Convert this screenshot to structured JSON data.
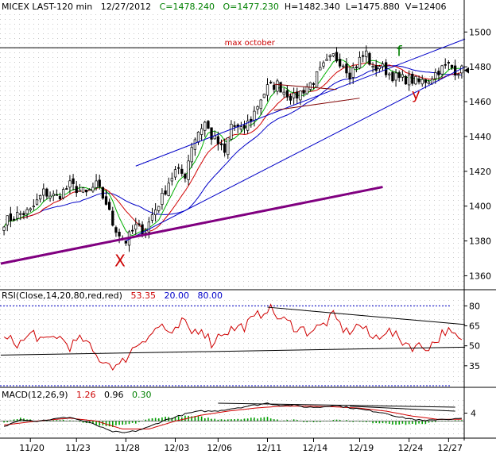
{
  "header": {
    "symbol": "MICEX LAST-120 min",
    "date": "12/27/2012",
    "close": "C=1478.240",
    "open": "O=1477.230",
    "high": "H=1482.340",
    "low": "L=1475.880",
    "volume": "V=12406"
  },
  "annotations": {
    "max_october": "max october",
    "x_label": "X",
    "f_label": "f",
    "y_label": "y"
  },
  "rsi_header": {
    "name": "RSI(Close,14,20,80,red,red)",
    "value": "53.35",
    "low_level": "20.00",
    "high_level": "80.00"
  },
  "macd_header": {
    "name": "MACD(12,26,9)",
    "macd": "1.26",
    "signal": "0.96",
    "hist": "0.30"
  },
  "colors": {
    "bull_candle": "#000000",
    "bear_candle": "#000000",
    "ma_fast": "#00b000",
    "ma_mid": "#d00000",
    "ma_slow": "#0000c8",
    "channel": "#0000c8",
    "support": "#800080",
    "rsi_line": "#d00000",
    "macd_line": "#000000",
    "signal_line": "#d00000",
    "hist": "#00a000",
    "guide": "#0000c8",
    "annot_red": "#cc0000",
    "annot_green": "#008000"
  },
  "chart_data": [
    {
      "type": "candlestick",
      "title": "MICEX LAST-120 min",
      "ylim": [
        1352,
        1512
      ],
      "y_ticks": [
        1360,
        1380,
        1400,
        1420,
        1440,
        1460,
        1480,
        1500
      ],
      "x_ticks": [
        "11/20",
        "11/23",
        "11/28",
        "12/03",
        "12/06",
        "12/11",
        "12/14",
        "12/19",
        "12/24",
        "12/27"
      ],
      "x_tick_index": [
        8,
        22,
        37,
        52,
        65,
        80,
        94,
        108,
        123,
        135
      ],
      "bar_count": 140,
      "close_anchors": [
        [
          0,
          1391
        ],
        [
          4,
          1395
        ],
        [
          8,
          1397
        ],
        [
          12,
          1408
        ],
        [
          16,
          1405
        ],
        [
          20,
          1412
        ],
        [
          22,
          1410
        ],
        [
          25,
          1407
        ],
        [
          28,
          1412
        ],
        [
          31,
          1402
        ],
        [
          33,
          1390
        ],
        [
          35,
          1384
        ],
        [
          37,
          1380
        ],
        [
          40,
          1388
        ],
        [
          43,
          1386
        ],
        [
          45,
          1395
        ],
        [
          48,
          1405
        ],
        [
          50,
          1414
        ],
        [
          52,
          1420
        ],
        [
          55,
          1418
        ],
        [
          57,
          1435
        ],
        [
          59,
          1443
        ],
        [
          61,
          1448
        ],
        [
          63,
          1440
        ],
        [
          65,
          1436
        ],
        [
          67,
          1430
        ],
        [
          69,
          1447
        ],
        [
          72,
          1443
        ],
        [
          75,
          1450
        ],
        [
          78,
          1462
        ],
        [
          80,
          1468
        ],
        [
          83,
          1470
        ],
        [
          85,
          1466
        ],
        [
          88,
          1462
        ],
        [
          91,
          1467
        ],
        [
          94,
          1472
        ],
        [
          97,
          1480
        ],
        [
          100,
          1486
        ],
        [
          103,
          1482
        ],
        [
          105,
          1476
        ],
        [
          108,
          1484
        ],
        [
          110,
          1488
        ],
        [
          112,
          1478
        ],
        [
          114,
          1481
        ],
        [
          117,
          1476
        ],
        [
          120,
          1473
        ],
        [
          123,
          1473
        ],
        [
          126,
          1471
        ],
        [
          129,
          1473
        ],
        [
          132,
          1478
        ],
        [
          135,
          1481
        ],
        [
          137,
          1478
        ],
        [
          139,
          1478
        ]
      ],
      "lines": {
        "max_october": {
          "value": 1491
        },
        "channel_upper": {
          "from": [
            40,
            1423
          ],
          "to": [
            140,
            1496
          ]
        },
        "channel_lower": {
          "from": [
            37,
            1380
          ],
          "to": [
            140,
            1480
          ]
        },
        "support": {
          "from": [
            -1,
            1367
          ],
          "to": [
            115,
            1411
          ]
        },
        "triangle_top": {
          "from": [
            82,
            1470
          ],
          "to": [
            101,
            1467
          ]
        },
        "triangle_bottom": {
          "from": [
            82,
            1455
          ],
          "to": [
            108,
            1462
          ]
        }
      },
      "labels": {
        "x": [
          35,
          1369
        ],
        "f": [
          120,
          1489
        ],
        "y": [
          125,
          1465
        ]
      }
    },
    {
      "type": "line",
      "title": "RSI(Close,14,20,80,red,red)",
      "ylim": [
        20,
        85
      ],
      "y_ticks": [
        35,
        50,
        65,
        80
      ],
      "levels": [
        80,
        20
      ],
      "rsi_anchors": [
        [
          0,
          55
        ],
        [
          5,
          52
        ],
        [
          9,
          60
        ],
        [
          12,
          52
        ],
        [
          16,
          58
        ],
        [
          20,
          50
        ],
        [
          24,
          55
        ],
        [
          28,
          42
        ],
        [
          31,
          38
        ],
        [
          35,
          34
        ],
        [
          38,
          45
        ],
        [
          42,
          55
        ],
        [
          45,
          60
        ],
        [
          48,
          66
        ],
        [
          51,
          56
        ],
        [
          54,
          68
        ],
        [
          57,
          60
        ],
        [
          60,
          64
        ],
        [
          63,
          52
        ],
        [
          66,
          60
        ],
        [
          70,
          63
        ],
        [
          73,
          65
        ],
        [
          76,
          70
        ],
        [
          80,
          79
        ],
        [
          84,
          70
        ],
        [
          88,
          65
        ],
        [
          92,
          61
        ],
        [
          96,
          64
        ],
        [
          100,
          72
        ],
        [
          104,
          60
        ],
        [
          108,
          66
        ],
        [
          112,
          55
        ],
        [
          116,
          62
        ],
        [
          120,
          55
        ],
        [
          124,
          50
        ],
        [
          128,
          49
        ],
        [
          131,
          53
        ],
        [
          134,
          62
        ],
        [
          137,
          56
        ],
        [
          139,
          53
        ]
      ],
      "trend_upper": {
        "from": [
          80,
          79
        ],
        "to": [
          140,
          66
        ]
      },
      "trend_lower": {
        "from": [
          -1,
          43
        ],
        "to": [
          140,
          49
        ]
      }
    },
    {
      "type": "line",
      "title": "MACD(12,26,9)",
      "ylim": [
        -7,
        11
      ],
      "y_ticks": [
        4
      ],
      "macd_anchors": [
        [
          0,
          -3
        ],
        [
          5,
          1
        ],
        [
          10,
          0
        ],
        [
          15,
          1
        ],
        [
          20,
          2
        ],
        [
          24,
          0
        ],
        [
          28,
          -2
        ],
        [
          32,
          -5
        ],
        [
          36,
          -6
        ],
        [
          40,
          -5
        ],
        [
          44,
          -3
        ],
        [
          48,
          0
        ],
        [
          52,
          2
        ],
        [
          56,
          4
        ],
        [
          60,
          5
        ],
        [
          64,
          5
        ],
        [
          68,
          6
        ],
        [
          72,
          7
        ],
        [
          76,
          8
        ],
        [
          80,
          9
        ],
        [
          84,
          8
        ],
        [
          88,
          8
        ],
        [
          92,
          7
        ],
        [
          96,
          7
        ],
        [
          100,
          8
        ],
        [
          104,
          7
        ],
        [
          108,
          6
        ],
        [
          112,
          5
        ],
        [
          116,
          4
        ],
        [
          120,
          2
        ],
        [
          124,
          1
        ],
        [
          128,
          0
        ],
        [
          132,
          1
        ],
        [
          136,
          1
        ],
        [
          139,
          1.26
        ]
      ],
      "signal_anchors": [
        [
          0,
          -2
        ],
        [
          10,
          0
        ],
        [
          20,
          1.5
        ],
        [
          28,
          0
        ],
        [
          36,
          -4
        ],
        [
          44,
          -4
        ],
        [
          52,
          0
        ],
        [
          60,
          3
        ],
        [
          68,
          5
        ],
        [
          76,
          6.5
        ],
        [
          84,
          7.5
        ],
        [
          92,
          7.5
        ],
        [
          100,
          7.2
        ],
        [
          108,
          6.5
        ],
        [
          116,
          5
        ],
        [
          124,
          2.5
        ],
        [
          132,
          0.8
        ],
        [
          139,
          0.96
        ]
      ],
      "trend_upper": {
        "from": [
          65,
          9
        ],
        "to": [
          137,
          7
        ]
      },
      "trend_lower": {
        "from": [
          105,
          7.5
        ],
        "to": [
          137,
          5
        ]
      }
    }
  ]
}
